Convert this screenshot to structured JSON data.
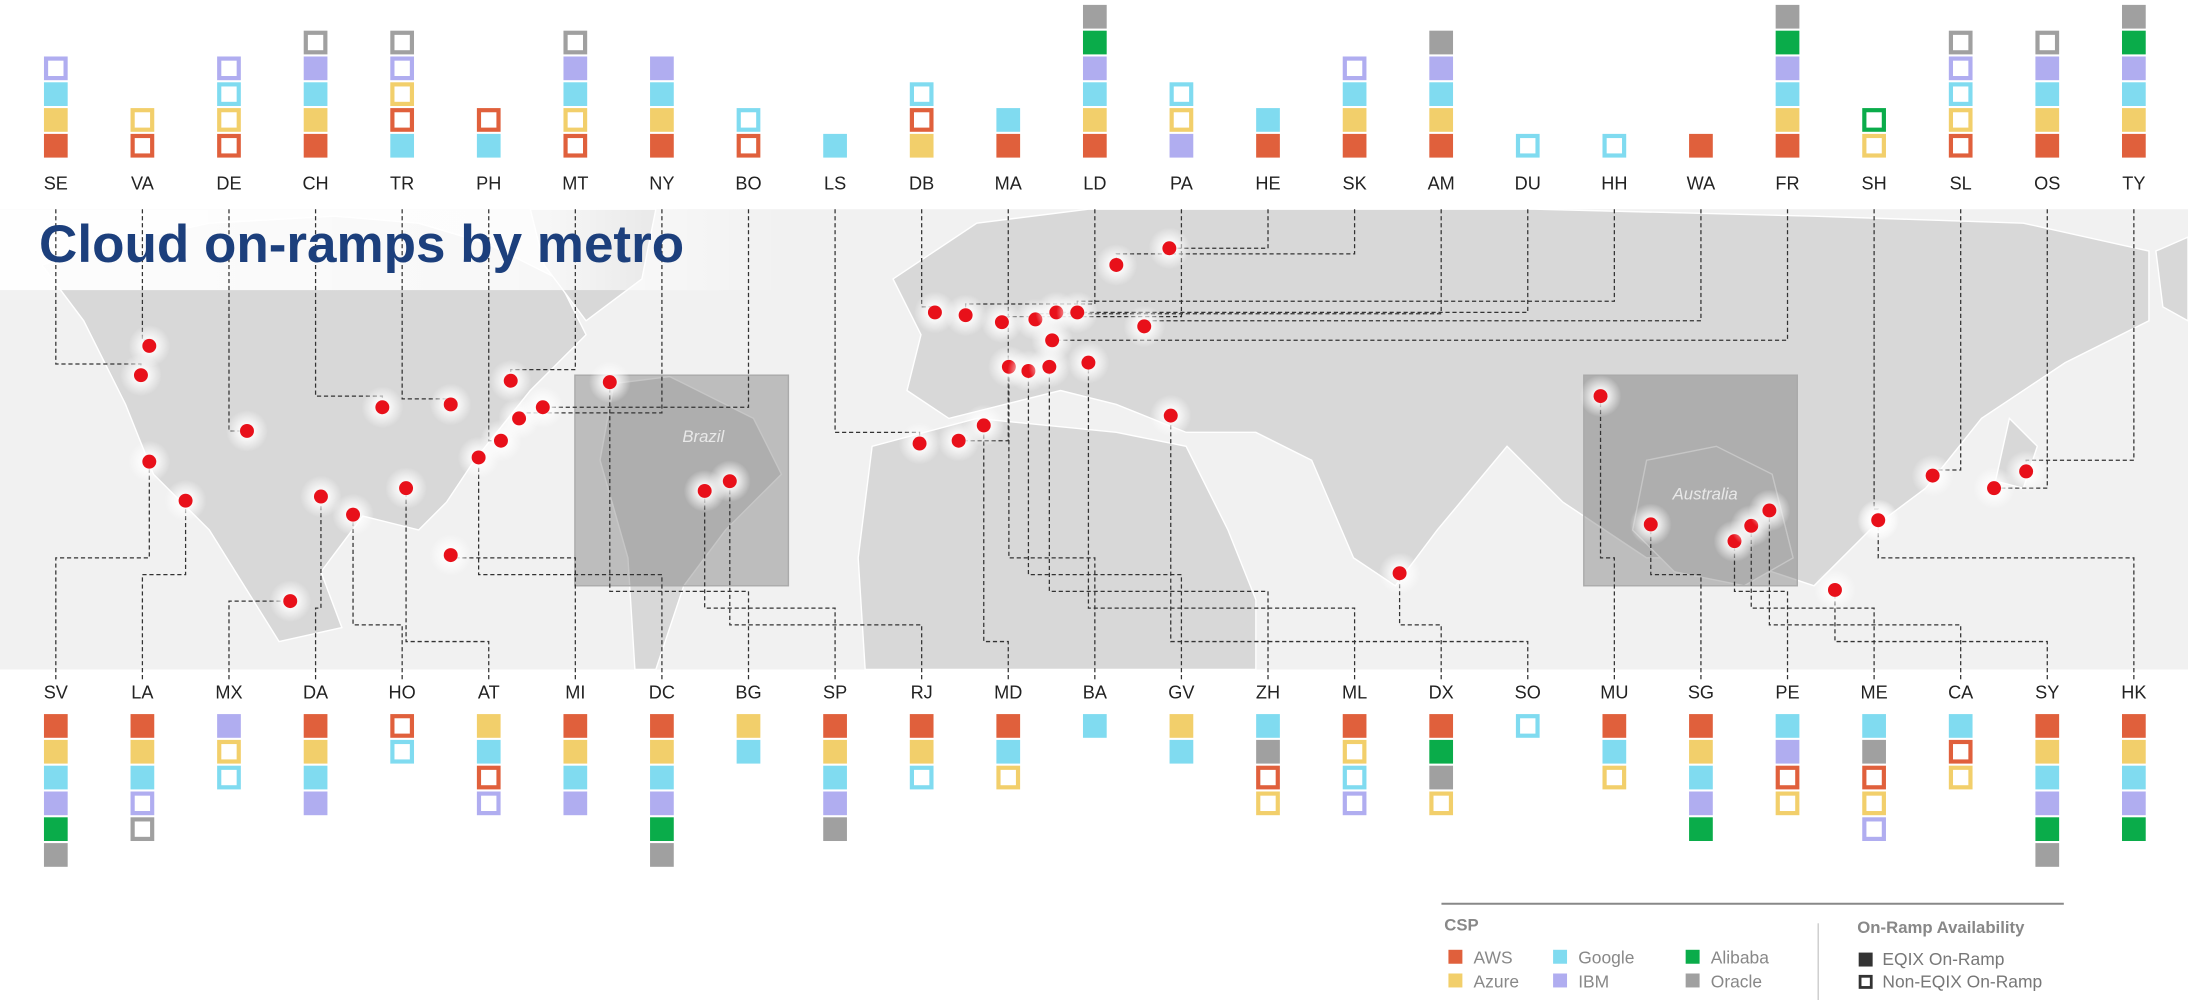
{
  "title": "Cloud on-ramps by metro",
  "map_labels": [
    "Brazil",
    "Australia"
  ],
  "top_metros": [
    {
      "code": "SE",
      "onramps": [
        {
          "csp": "AWS",
          "eqix": true
        },
        {
          "csp": "Azure",
          "eqix": true
        },
        {
          "csp": "Google",
          "eqix": true
        },
        {
          "csp": "IBM",
          "eqix": false
        }
      ]
    },
    {
      "code": "VA",
      "onramps": [
        {
          "csp": "AWS",
          "eqix": false
        },
        {
          "csp": "Azure",
          "eqix": false
        }
      ]
    },
    {
      "code": "DE",
      "onramps": [
        {
          "csp": "AWS",
          "eqix": false
        },
        {
          "csp": "Azure",
          "eqix": false
        },
        {
          "csp": "Google",
          "eqix": false
        },
        {
          "csp": "IBM",
          "eqix": false
        }
      ]
    },
    {
      "code": "CH",
      "onramps": [
        {
          "csp": "AWS",
          "eqix": true
        },
        {
          "csp": "Azure",
          "eqix": true
        },
        {
          "csp": "Google",
          "eqix": true
        },
        {
          "csp": "IBM",
          "eqix": true
        },
        {
          "csp": "Oracle",
          "eqix": false
        }
      ]
    },
    {
      "code": "TR",
      "onramps": [
        {
          "csp": "Google",
          "eqix": true
        },
        {
          "csp": "AWS",
          "eqix": false
        },
        {
          "csp": "Azure",
          "eqix": false
        },
        {
          "csp": "IBM",
          "eqix": false
        },
        {
          "csp": "Oracle",
          "eqix": false
        }
      ]
    },
    {
      "code": "PH",
      "onramps": [
        {
          "csp": "Google",
          "eqix": true
        },
        {
          "csp": "AWS",
          "eqix": false
        }
      ]
    },
    {
      "code": "MT",
      "onramps": [
        {
          "csp": "AWS",
          "eqix": false
        },
        {
          "csp": "Azure",
          "eqix": false
        },
        {
          "csp": "Google",
          "eqix": true
        },
        {
          "csp": "IBM",
          "eqix": true
        },
        {
          "csp": "Oracle",
          "eqix": false
        }
      ]
    },
    {
      "code": "NY",
      "onramps": [
        {
          "csp": "AWS",
          "eqix": true
        },
        {
          "csp": "Azure",
          "eqix": true
        },
        {
          "csp": "Google",
          "eqix": true
        },
        {
          "csp": "IBM",
          "eqix": true
        }
      ]
    },
    {
      "code": "BO",
      "onramps": [
        {
          "csp": "AWS",
          "eqix": false
        },
        {
          "csp": "Google",
          "eqix": false
        }
      ]
    },
    {
      "code": "LS",
      "onramps": [
        {
          "csp": "Google",
          "eqix": true
        }
      ]
    },
    {
      "code": "DB",
      "onramps": [
        {
          "csp": "Azure",
          "eqix": true
        },
        {
          "csp": "AWS",
          "eqix": false
        },
        {
          "csp": "Google",
          "eqix": false
        }
      ]
    },
    {
      "code": "MA",
      "onramps": [
        {
          "csp": "AWS",
          "eqix": true
        },
        {
          "csp": "Google",
          "eqix": true
        }
      ]
    },
    {
      "code": "LD",
      "onramps": [
        {
          "csp": "AWS",
          "eqix": true
        },
        {
          "csp": "Azure",
          "eqix": true
        },
        {
          "csp": "Google",
          "eqix": true
        },
        {
          "csp": "IBM",
          "eqix": true
        },
        {
          "csp": "Alibaba",
          "eqix": true
        },
        {
          "csp": "Oracle",
          "eqix": true
        }
      ]
    },
    {
      "code": "PA",
      "onramps": [
        {
          "csp": "IBM",
          "eqix": true
        },
        {
          "csp": "Azure",
          "eqix": false
        },
        {
          "csp": "Google",
          "eqix": false
        }
      ]
    },
    {
      "code": "HE",
      "onramps": [
        {
          "csp": "AWS",
          "eqix": true
        },
        {
          "csp": "Google",
          "eqix": true
        }
      ]
    },
    {
      "code": "SK",
      "onramps": [
        {
          "csp": "AWS",
          "eqix": true
        },
        {
          "csp": "Azure",
          "eqix": true
        },
        {
          "csp": "Google",
          "eqix": true
        },
        {
          "csp": "IBM",
          "eqix": false
        }
      ]
    },
    {
      "code": "AM",
      "onramps": [
        {
          "csp": "AWS",
          "eqix": true
        },
        {
          "csp": "Azure",
          "eqix": true
        },
        {
          "csp": "Google",
          "eqix": true
        },
        {
          "csp": "IBM",
          "eqix": true
        },
        {
          "csp": "Oracle",
          "eqix": true
        }
      ]
    },
    {
      "code": "DU",
      "onramps": [
        {
          "csp": "Google",
          "eqix": false
        }
      ]
    },
    {
      "code": "HH",
      "onramps": [
        {
          "csp": "Google",
          "eqix": false
        }
      ]
    },
    {
      "code": "WA",
      "onramps": [
        {
          "csp": "AWS",
          "eqix": true
        }
      ]
    },
    {
      "code": "FR",
      "onramps": [
        {
          "csp": "AWS",
          "eqix": true
        },
        {
          "csp": "Azure",
          "eqix": true
        },
        {
          "csp": "Google",
          "eqix": true
        },
        {
          "csp": "IBM",
          "eqix": true
        },
        {
          "csp": "Alibaba",
          "eqix": true
        },
        {
          "csp": "Oracle",
          "eqix": true
        }
      ]
    },
    {
      "code": "SH",
      "onramps": [
        {
          "csp": "Azure",
          "eqix": false
        },
        {
          "csp": "Alibaba",
          "eqix": false
        }
      ]
    },
    {
      "code": "SL",
      "onramps": [
        {
          "csp": "AWS",
          "eqix": false
        },
        {
          "csp": "Azure",
          "eqix": false
        },
        {
          "csp": "Google",
          "eqix": false
        },
        {
          "csp": "IBM",
          "eqix": false
        },
        {
          "csp": "Oracle",
          "eqix": false
        }
      ]
    },
    {
      "code": "OS",
      "onramps": [
        {
          "csp": "AWS",
          "eqix": true
        },
        {
          "csp": "Azure",
          "eqix": true
        },
        {
          "csp": "Google",
          "eqix": true
        },
        {
          "csp": "IBM",
          "eqix": true
        },
        {
          "csp": "Oracle",
          "eqix": false
        }
      ]
    },
    {
      "code": "TY",
      "onramps": [
        {
          "csp": "AWS",
          "eqix": true
        },
        {
          "csp": "Azure",
          "eqix": true
        },
        {
          "csp": "Google",
          "eqix": true
        },
        {
          "csp": "IBM",
          "eqix": true
        },
        {
          "csp": "Alibaba",
          "eqix": true
        },
        {
          "csp": "Oracle",
          "eqix": true
        }
      ]
    }
  ],
  "bottom_metros": [
    {
      "code": "SV",
      "onramps": [
        {
          "csp": "AWS",
          "eqix": true
        },
        {
          "csp": "Azure",
          "eqix": true
        },
        {
          "csp": "Google",
          "eqix": true
        },
        {
          "csp": "IBM",
          "eqix": true
        },
        {
          "csp": "Alibaba",
          "eqix": true
        },
        {
          "csp": "Oracle",
          "eqix": true
        }
      ]
    },
    {
      "code": "LA",
      "onramps": [
        {
          "csp": "AWS",
          "eqix": true
        },
        {
          "csp": "Azure",
          "eqix": true
        },
        {
          "csp": "Google",
          "eqix": true
        },
        {
          "csp": "IBM",
          "eqix": false
        },
        {
          "csp": "Oracle",
          "eqix": false
        }
      ]
    },
    {
      "code": "MX",
      "onramps": [
        {
          "csp": "IBM",
          "eqix": true
        },
        {
          "csp": "Azure",
          "eqix": false
        },
        {
          "csp": "Google",
          "eqix": false
        }
      ]
    },
    {
      "code": "DA",
      "onramps": [
        {
          "csp": "AWS",
          "eqix": true
        },
        {
          "csp": "Azure",
          "eqix": true
        },
        {
          "csp": "Google",
          "eqix": true
        },
        {
          "csp": "IBM",
          "eqix": true
        }
      ]
    },
    {
      "code": "HO",
      "onramps": [
        {
          "csp": "AWS",
          "eqix": false
        },
        {
          "csp": "Google",
          "eqix": false
        }
      ]
    },
    {
      "code": "AT",
      "onramps": [
        {
          "csp": "Azure",
          "eqix": true
        },
        {
          "csp": "Google",
          "eqix": true
        },
        {
          "csp": "AWS",
          "eqix": false
        },
        {
          "csp": "IBM",
          "eqix": false
        }
      ]
    },
    {
      "code": "MI",
      "onramps": [
        {
          "csp": "AWS",
          "eqix": true
        },
        {
          "csp": "Azure",
          "eqix": true
        },
        {
          "csp": "Google",
          "eqix": true
        },
        {
          "csp": "IBM",
          "eqix": true
        }
      ]
    },
    {
      "code": "DC",
      "onramps": [
        {
          "csp": "AWS",
          "eqix": true
        },
        {
          "csp": "Azure",
          "eqix": true
        },
        {
          "csp": "Google",
          "eqix": true
        },
        {
          "csp": "IBM",
          "eqix": true
        },
        {
          "csp": "Alibaba",
          "eqix": true
        },
        {
          "csp": "Oracle",
          "eqix": true
        }
      ]
    },
    {
      "code": "BG",
      "onramps": [
        {
          "csp": "Azure",
          "eqix": true
        },
        {
          "csp": "Google",
          "eqix": true
        }
      ]
    },
    {
      "code": "SP",
      "onramps": [
        {
          "csp": "AWS",
          "eqix": true
        },
        {
          "csp": "Azure",
          "eqix": true
        },
        {
          "csp": "Google",
          "eqix": true
        },
        {
          "csp": "IBM",
          "eqix": true
        },
        {
          "csp": "Oracle",
          "eqix": true
        }
      ]
    },
    {
      "code": "RJ",
      "onramps": [
        {
          "csp": "AWS",
          "eqix": true
        },
        {
          "csp": "Azure",
          "eqix": true
        },
        {
          "csp": "Google",
          "eqix": false
        }
      ]
    },
    {
      "code": "MD",
      "onramps": [
        {
          "csp": "AWS",
          "eqix": true
        },
        {
          "csp": "Google",
          "eqix": true
        },
        {
          "csp": "Azure",
          "eqix": false
        }
      ]
    },
    {
      "code": "BA",
      "onramps": [
        {
          "csp": "Google",
          "eqix": true
        }
      ]
    },
    {
      "code": "GV",
      "onramps": [
        {
          "csp": "Azure",
          "eqix": true
        },
        {
          "csp": "Google",
          "eqix": true
        }
      ]
    },
    {
      "code": "ZH",
      "onramps": [
        {
          "csp": "Google",
          "eqix": true
        },
        {
          "csp": "Oracle",
          "eqix": true
        },
        {
          "csp": "AWS",
          "eqix": false
        },
        {
          "csp": "Azure",
          "eqix": false
        }
      ]
    },
    {
      "code": "ML",
      "onramps": [
        {
          "csp": "AWS",
          "eqix": true
        },
        {
          "csp": "Azure",
          "eqix": false
        },
        {
          "csp": "Google",
          "eqix": false
        },
        {
          "csp": "IBM",
          "eqix": false
        }
      ]
    },
    {
      "code": "DX",
      "onramps": [
        {
          "csp": "AWS",
          "eqix": true
        },
        {
          "csp": "Alibaba",
          "eqix": true
        },
        {
          "csp": "Oracle",
          "eqix": true
        },
        {
          "csp": "Azure",
          "eqix": false
        }
      ]
    },
    {
      "code": "SO",
      "onramps": [
        {
          "csp": "Google",
          "eqix": false
        }
      ]
    },
    {
      "code": "MU",
      "onramps": [
        {
          "csp": "AWS",
          "eqix": true
        },
        {
          "csp": "Google",
          "eqix": true
        },
        {
          "csp": "Azure",
          "eqix": false
        }
      ]
    },
    {
      "code": "SG",
      "onramps": [
        {
          "csp": "AWS",
          "eqix": true
        },
        {
          "csp": "Azure",
          "eqix": true
        },
        {
          "csp": "Google",
          "eqix": true
        },
        {
          "csp": "IBM",
          "eqix": true
        },
        {
          "csp": "Alibaba",
          "eqix": true
        }
      ]
    },
    {
      "code": "PE",
      "onramps": [
        {
          "csp": "Google",
          "eqix": true
        },
        {
          "csp": "IBM",
          "eqix": true
        },
        {
          "csp": "AWS",
          "eqix": false
        },
        {
          "csp": "Azure",
          "eqix": false
        }
      ]
    },
    {
      "code": "ME",
      "onramps": [
        {
          "csp": "Google",
          "eqix": true
        },
        {
          "csp": "Oracle",
          "eqix": true
        },
        {
          "csp": "AWS",
          "eqix": false
        },
        {
          "csp": "Azure",
          "eqix": false
        },
        {
          "csp": "IBM",
          "eqix": false
        }
      ]
    },
    {
      "code": "CA",
      "onramps": [
        {
          "csp": "Google",
          "eqix": true
        },
        {
          "csp": "AWS",
          "eqix": false
        },
        {
          "csp": "Azure",
          "eqix": false
        }
      ]
    },
    {
      "code": "SY",
      "onramps": [
        {
          "csp": "AWS",
          "eqix": true
        },
        {
          "csp": "Azure",
          "eqix": true
        },
        {
          "csp": "Google",
          "eqix": true
        },
        {
          "csp": "IBM",
          "eqix": true
        },
        {
          "csp": "Alibaba",
          "eqix": true
        },
        {
          "csp": "Oracle",
          "eqix": true
        }
      ]
    },
    {
      "code": "HK",
      "onramps": [
        {
          "csp": "AWS",
          "eqix": true
        },
        {
          "csp": "Azure",
          "eqix": true
        },
        {
          "csp": "Google",
          "eqix": true
        },
        {
          "csp": "IBM",
          "eqix": true
        },
        {
          "csp": "Alibaba",
          "eqix": true
        }
      ]
    }
  ],
  "legend": {
    "csp_title": "CSP",
    "csps": [
      {
        "name": "AWS",
        "color": "#e0603c"
      },
      {
        "name": "Azure",
        "color": "#f2cf6b"
      },
      {
        "name": "Google",
        "color": "#80dbf0"
      },
      {
        "name": "IBM",
        "color": "#b0adf0"
      },
      {
        "name": "Alibaba",
        "color": "#0aac4a"
      },
      {
        "name": "Oracle",
        "color": "#a0a0a0"
      }
    ],
    "availability_title": "On-Ramp Availability",
    "eqix_label": "EQIX On-Ramp",
    "non_eqix_label": "Non-EQIX On-Ramp"
  }
}
